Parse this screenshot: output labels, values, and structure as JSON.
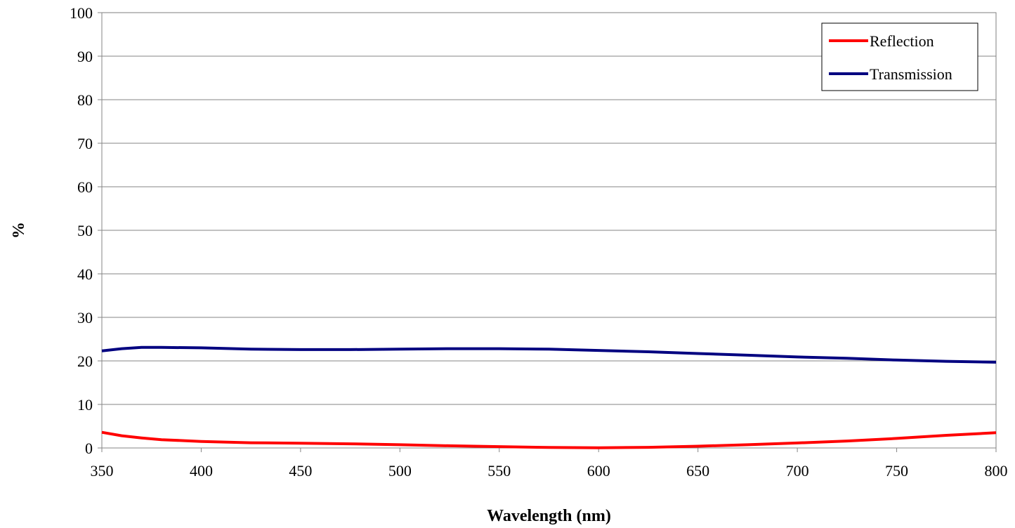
{
  "chart_data": {
    "type": "line",
    "title": "",
    "xlabel": "Wavelength (nm)",
    "ylabel": "%",
    "xlim": [
      350,
      800
    ],
    "ylim": [
      0,
      100
    ],
    "xticks": [
      "350",
      "400",
      "450",
      "500",
      "550",
      "600",
      "650",
      "700",
      "750",
      "800"
    ],
    "yticks": [
      "0",
      "10",
      "20",
      "30",
      "40",
      "50",
      "60",
      "70",
      "80",
      "90",
      "100"
    ],
    "grid": "horizontal",
    "legend_position": "top-right",
    "series": [
      {
        "name": "Reflection",
        "color": "#ff0000",
        "x": [
          350,
          360,
          370,
          380,
          400,
          425,
          450,
          475,
          500,
          525,
          550,
          575,
          600,
          625,
          650,
          675,
          700,
          725,
          750,
          775,
          800
        ],
        "y": [
          3.6,
          2.8,
          2.3,
          1.9,
          1.5,
          1.2,
          1.1,
          0.95,
          0.75,
          0.5,
          0.3,
          0.12,
          0.05,
          0.15,
          0.4,
          0.75,
          1.15,
          1.6,
          2.2,
          2.9,
          3.5
        ]
      },
      {
        "name": "Transmission",
        "color": "#000080",
        "x": [
          350,
          360,
          370,
          380,
          400,
          425,
          450,
          475,
          500,
          525,
          550,
          575,
          600,
          625,
          650,
          675,
          700,
          725,
          750,
          775,
          800
        ],
        "y": [
          22.3,
          22.8,
          23.1,
          23.1,
          23.0,
          22.7,
          22.6,
          22.6,
          22.7,
          22.8,
          22.8,
          22.7,
          22.4,
          22.1,
          21.7,
          21.3,
          20.9,
          20.6,
          20.2,
          19.9,
          19.7
        ]
      }
    ]
  }
}
